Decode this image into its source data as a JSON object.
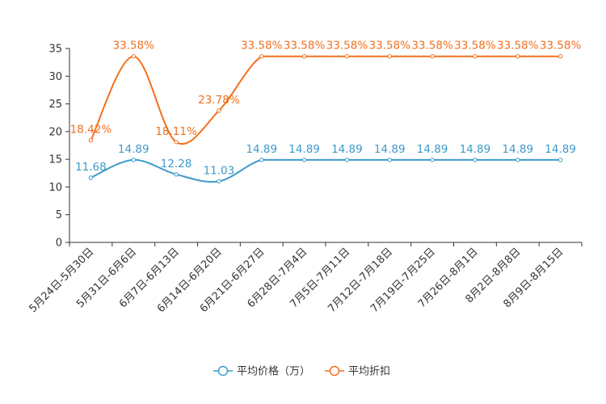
{
  "chart_data": {
    "type": "line",
    "title": "",
    "xlabel": "",
    "ylabel": "",
    "ylim": [
      0,
      35
    ],
    "yticks": [
      "0",
      "5",
      "10",
      "15",
      "20",
      "25",
      "30",
      "35"
    ],
    "grid": false,
    "legend_position": "bottom-center",
    "categories": [
      "5月24日-5月30日",
      "5月31日-6月6日",
      "6月7日-6月13日",
      "6月14日-6月20日",
      "6月21日-6月27日",
      "6月28日-7月4日",
      "7月5日-7月11日",
      "7月12日-7月18日",
      "7月19日-7月25日",
      "7月26日-8月1日",
      "8月2日-8月8日",
      "8月9日-8月15日"
    ],
    "series": [
      {
        "name": "平均价格（万）",
        "color": "#3d9ac9",
        "values": [
          11.68,
          14.89,
          12.28,
          11.03,
          14.89,
          14.89,
          14.89,
          14.89,
          14.89,
          14.89,
          14.89,
          14.89
        ],
        "labels": [
          "11.68",
          "14.89",
          "12.28",
          "11.03",
          "14.89",
          "14.89",
          "14.89",
          "14.89",
          "14.89",
          "14.89",
          "14.89",
          "14.89"
        ]
      },
      {
        "name": "平均折扣",
        "color": "#f2701d",
        "values": [
          18.42,
          33.58,
          18.11,
          23.78,
          33.58,
          33.58,
          33.58,
          33.58,
          33.58,
          33.58,
          33.58,
          33.58
        ],
        "labels": [
          "18.42%",
          "33.58%",
          "18.11%",
          "23.78%",
          "33.58%",
          "33.58%",
          "33.58%",
          "33.58%",
          "33.58%",
          "33.58%",
          "33.58%",
          "33.58%"
        ]
      }
    ]
  }
}
